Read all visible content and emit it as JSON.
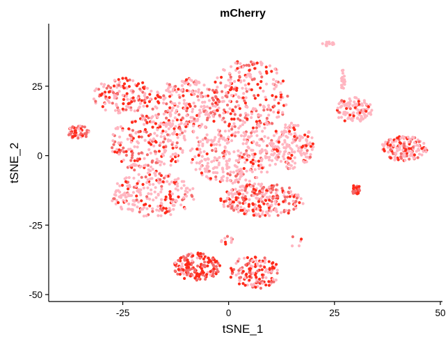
{
  "chart_data": {
    "type": "scatter",
    "title": "mCherry",
    "xlabel": "tSNE_1",
    "ylabel": "tSNE_2",
    "xlim": [
      -42.5,
      50.5
    ],
    "ylim": [
      -52.5,
      47.5
    ],
    "xticks": [
      -25,
      0,
      25,
      50
    ],
    "yticks": [
      -50,
      -25,
      0,
      25
    ],
    "grid": false,
    "legend": "none",
    "colors": {
      "low": "#ffb6c1",
      "high": "#ff2a1a",
      "mid": "#f46b6b"
    },
    "clusters": [
      {
        "name": "left-tail",
        "x": [
          -38,
          -33
        ],
        "y": [
          6,
          11
        ],
        "high_fraction": 0.8,
        "count": 60
      },
      {
        "name": "upper-left-arm",
        "x": [
          -32,
          -18
        ],
        "y": [
          15,
          28
        ],
        "high_fraction": 0.55,
        "count": 140
      },
      {
        "name": "left-body",
        "x": [
          -28,
          -10
        ],
        "y": [
          -6,
          15
        ],
        "high_fraction": 0.45,
        "count": 220
      },
      {
        "name": "upper-center-left",
        "x": [
          -18,
          -2
        ],
        "y": [
          8,
          28
        ],
        "high_fraction": 0.35,
        "count": 240
      },
      {
        "name": "upper-center",
        "x": [
          -4,
          14
        ],
        "y": [
          8,
          35
        ],
        "high_fraction": 0.4,
        "count": 260
      },
      {
        "name": "center",
        "x": [
          -10,
          12
        ],
        "y": [
          -10,
          10
        ],
        "high_fraction": 0.25,
        "count": 300
      },
      {
        "name": "center-right",
        "x": [
          10,
          20
        ],
        "y": [
          -5,
          12
        ],
        "high_fraction": 0.2,
        "count": 160
      },
      {
        "name": "lower-left-arm",
        "x": [
          -28,
          -8
        ],
        "y": [
          -22,
          -6
        ],
        "high_fraction": 0.3,
        "count": 220
      },
      {
        "name": "lower-band",
        "x": [
          -2,
          18
        ],
        "y": [
          -22,
          -10
        ],
        "high_fraction": 0.5,
        "count": 260
      },
      {
        "name": "bottom-left-blob",
        "x": [
          -13,
          -2
        ],
        "y": [
          -45,
          -35
        ],
        "high_fraction": 0.85,
        "count": 150
      },
      {
        "name": "bottom-right-blob",
        "x": [
          0,
          12
        ],
        "y": [
          -48,
          -36
        ],
        "high_fraction": 0.6,
        "count": 140
      },
      {
        "name": "bottom-connector",
        "x": [
          -2,
          1
        ],
        "y": [
          -32,
          -28
        ],
        "high_fraction": 0.3,
        "count": 10
      },
      {
        "name": "right-cluster",
        "x": [
          25,
          34
        ],
        "y": [
          12,
          21
        ],
        "high_fraction": 0.15,
        "count": 110
      },
      {
        "name": "right-vertical-streak",
        "x": [
          26.5,
          27.5
        ],
        "y": [
          23,
          31
        ],
        "high_fraction": 0.1,
        "count": 25
      },
      {
        "name": "top-right-dash",
        "x": [
          22,
          25
        ],
        "y": [
          39.5,
          41
        ],
        "high_fraction": 0.1,
        "count": 15
      },
      {
        "name": "far-right-cluster",
        "x": [
          36,
          47
        ],
        "y": [
          -2,
          7
        ],
        "high_fraction": 0.45,
        "count": 150
      },
      {
        "name": "small-red-cluster",
        "x": [
          29,
          31
        ],
        "y": [
          -14,
          -10
        ],
        "high_fraction": 1.0,
        "count": 30
      },
      {
        "name": "isolated-points",
        "x": [
          13,
          18
        ],
        "y": [
          -33,
          -29
        ],
        "high_fraction": 0.2,
        "count": 5
      }
    ]
  }
}
